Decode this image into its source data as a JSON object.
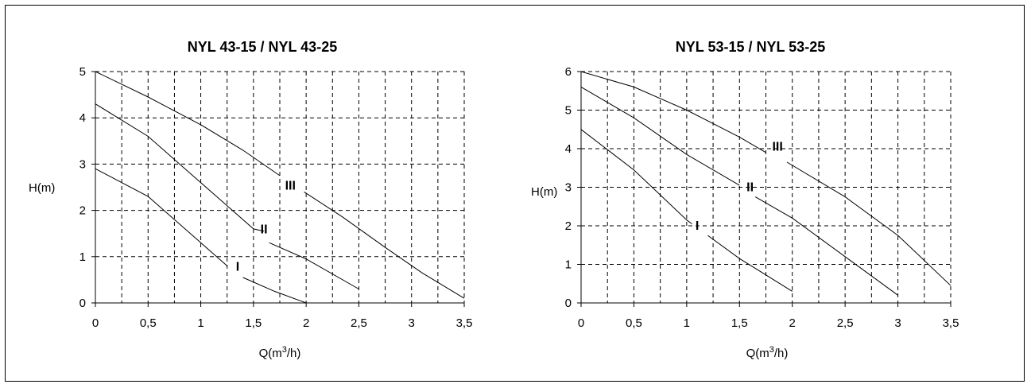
{
  "chart_data": [
    {
      "type": "line",
      "title": "NYL 43-15 / NYL 43-25",
      "xlabel_main": "Q(m",
      "xlabel_sup": "3",
      "xlabel_tail": "/h)",
      "ylabel": "H(m)",
      "xlim": [
        0,
        3.5
      ],
      "ylim": [
        0,
        5
      ],
      "x_ticks": [
        0,
        0.5,
        1,
        1.5,
        2,
        2.5,
        3,
        3.5
      ],
      "x_tick_labels": [
        "0",
        "0,5",
        "1",
        "1,5",
        "2",
        "2,5",
        "3",
        "3,5"
      ],
      "y_ticks": [
        0,
        1,
        2,
        3,
        4,
        5
      ],
      "y_tick_labels": [
        "0",
        "1",
        "2",
        "3",
        "4",
        "5"
      ],
      "grid": true,
      "grid_style": "dashed",
      "x_grid_step": 0.25,
      "series": [
        {
          "name": "I",
          "segments": [
            [
              [
                0,
                2.9
              ],
              [
                0.5,
                2.3
              ],
              [
                1,
                1.3
              ],
              [
                1.25,
                0.8
              ]
            ],
            [
              [
                1.4,
                0.55
              ],
              [
                1.7,
                0.25
              ],
              [
                2,
                0.0
              ]
            ]
          ],
          "label_at": [
            1.35,
            0.7
          ]
        },
        {
          "name": "II",
          "segments": [
            [
              [
                0,
                4.3
              ],
              [
                0.5,
                3.6
              ],
              [
                1,
                2.6
              ],
              [
                1.5,
                1.6
              ],
              [
                1.6,
                1.55
              ]
            ],
            [
              [
                1.65,
                1.3
              ],
              [
                2,
                0.95
              ],
              [
                2.5,
                0.3
              ]
            ]
          ],
          "label_at": [
            1.6,
            1.5
          ]
        },
        {
          "name": "III",
          "segments": [
            [
              [
                0,
                5.0
              ],
              [
                0.5,
                4.45
              ],
              [
                1,
                3.85
              ],
              [
                1.4,
                3.3
              ],
              [
                1.75,
                2.75
              ]
            ],
            [
              [
                1.98,
                2.4
              ],
              [
                2.35,
                1.85
              ],
              [
                2.75,
                1.2
              ],
              [
                3.1,
                0.65
              ],
              [
                3.5,
                0.1
              ]
            ]
          ],
          "label_at": [
            1.85,
            2.45
          ]
        }
      ]
    },
    {
      "type": "line",
      "title": "NYL 53-15 / NYL 53-25",
      "xlabel_main": "Q(m",
      "xlabel_sup": "3",
      "xlabel_tail": "/h)",
      "ylabel": "H(m)",
      "xlim": [
        0,
        3.5
      ],
      "ylim": [
        0,
        6
      ],
      "x_ticks": [
        0,
        0.5,
        1,
        1.5,
        2,
        2.5,
        3,
        3.5
      ],
      "x_tick_labels": [
        "0",
        "0,5",
        "1",
        "1,5",
        "2",
        "2,5",
        "3",
        "3,5"
      ],
      "y_ticks": [
        0,
        1,
        2,
        3,
        4,
        5,
        6
      ],
      "y_tick_labels": [
        "0",
        "1",
        "2",
        "3",
        "4",
        "5",
        "6"
      ],
      "grid": true,
      "grid_style": "dashed",
      "x_grid_step": 0.25,
      "series": [
        {
          "name": "I",
          "segments": [
            [
              [
                0,
                4.5
              ],
              [
                0.5,
                3.45
              ],
              [
                1,
                2.15
              ],
              [
                1.05,
                2.05
              ]
            ],
            [
              [
                1.2,
                1.75
              ],
              [
                1.5,
                1.15
              ],
              [
                2,
                0.3
              ]
            ]
          ],
          "label_at": [
            1.1,
            1.9
          ]
        },
        {
          "name": "II",
          "segments": [
            [
              [
                0,
                5.6
              ],
              [
                0.5,
                4.8
              ],
              [
                1,
                3.85
              ],
              [
                1.5,
                3.05
              ]
            ],
            [
              [
                1.65,
                2.75
              ],
              [
                2,
                2.2
              ],
              [
                2.5,
                1.2
              ],
              [
                3,
                0.2
              ]
            ]
          ],
          "label_at": [
            1.6,
            2.9
          ]
        },
        {
          "name": "III",
          "segments": [
            [
              [
                0,
                6.0
              ],
              [
                0.5,
                5.6
              ],
              [
                1,
                5.0
              ],
              [
                1.5,
                4.3
              ],
              [
                1.75,
                3.9
              ]
            ],
            [
              [
                1.95,
                3.65
              ],
              [
                2.5,
                2.75
              ],
              [
                3,
                1.75
              ],
              [
                3.5,
                0.45
              ]
            ]
          ],
          "label_at": [
            1.86,
            3.95
          ]
        }
      ]
    }
  ]
}
